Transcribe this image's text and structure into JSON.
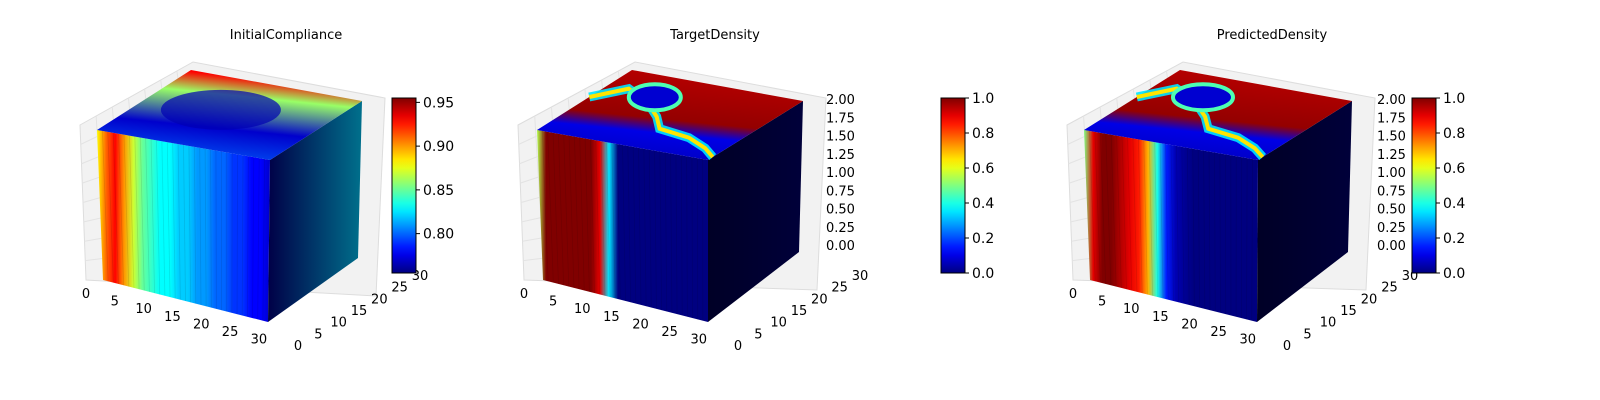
{
  "chart_data": [
    {
      "type": "3d-voxel",
      "title": "InitialCompliance",
      "x_ticks": [
        "0",
        "5",
        "10",
        "15",
        "20",
        "25",
        "30"
      ],
      "y_ticks": [
        "0",
        "5",
        "10",
        "15",
        "20",
        "25",
        "30"
      ],
      "z_ticks": [],
      "front_face_columns": [
        0.88,
        0.91,
        0.93,
        0.9,
        0.87,
        0.85,
        0.84,
        0.83,
        0.83,
        0.82,
        0.82,
        0.81,
        0.81,
        0.8,
        0.8,
        0.79,
        0.79,
        0.78,
        0.78,
        0.77
      ],
      "colorbar": {
        "min": 0.755,
        "max": 0.955,
        "ticks": [
          "0.80",
          "0.85",
          "0.90",
          "0.95"
        ],
        "tick_values": [
          0.8,
          0.85,
          0.9,
          0.95
        ]
      }
    },
    {
      "type": "3d-voxel",
      "title": "TargetDensity",
      "x_ticks": [
        "0",
        "5",
        "10",
        "15",
        "20",
        "25",
        "30"
      ],
      "y_ticks": [
        "0",
        "5",
        "10",
        "15",
        "20",
        "25",
        "30"
      ],
      "z_ticks": [
        "0.00",
        "0.25",
        "0.50",
        "0.75",
        "1.00",
        "1.25",
        "1.50",
        "1.75",
        "2.00"
      ],
      "front_face_columns": [
        0.55,
        1.0,
        1.0,
        1.0,
        1.0,
        1.0,
        1.0,
        0.9,
        0.35,
        0.0,
        0.0,
        0.0,
        0.0,
        0.0,
        0.0,
        0.0,
        0.0,
        0.0,
        0.0,
        0.0
      ],
      "colorbar": {
        "min": 0.0,
        "max": 1.0,
        "ticks": [
          "0.0",
          "0.2",
          "0.4",
          "0.6",
          "0.8",
          "1.0"
        ],
        "tick_values": [
          0.0,
          0.2,
          0.4,
          0.6,
          0.8,
          1.0
        ]
      }
    },
    {
      "type": "3d-voxel",
      "title": "PredictedDensity",
      "x_ticks": [
        "0",
        "5",
        "10",
        "15",
        "20",
        "25",
        "30"
      ],
      "y_ticks": [
        "0",
        "5",
        "10",
        "15",
        "20",
        "25",
        "30"
      ],
      "z_ticks": [
        "0.00",
        "0.25",
        "0.50",
        "0.75",
        "1.00",
        "1.25",
        "1.50",
        "1.75",
        "2.00"
      ],
      "front_face_columns": [
        0.5,
        0.9,
        1.0,
        1.0,
        0.95,
        0.9,
        0.85,
        0.7,
        0.4,
        0.15,
        0.05,
        0.02,
        0.0,
        0.0,
        0.0,
        0.0,
        0.0,
        0.0,
        0.0,
        0.0
      ],
      "colorbar": {
        "min": 0.0,
        "max": 1.0,
        "ticks": [
          "0.0",
          "0.2",
          "0.4",
          "0.6",
          "0.8",
          "1.0"
        ],
        "tick_values": [
          0.0,
          0.2,
          0.4,
          0.6,
          0.8,
          1.0
        ]
      }
    }
  ]
}
